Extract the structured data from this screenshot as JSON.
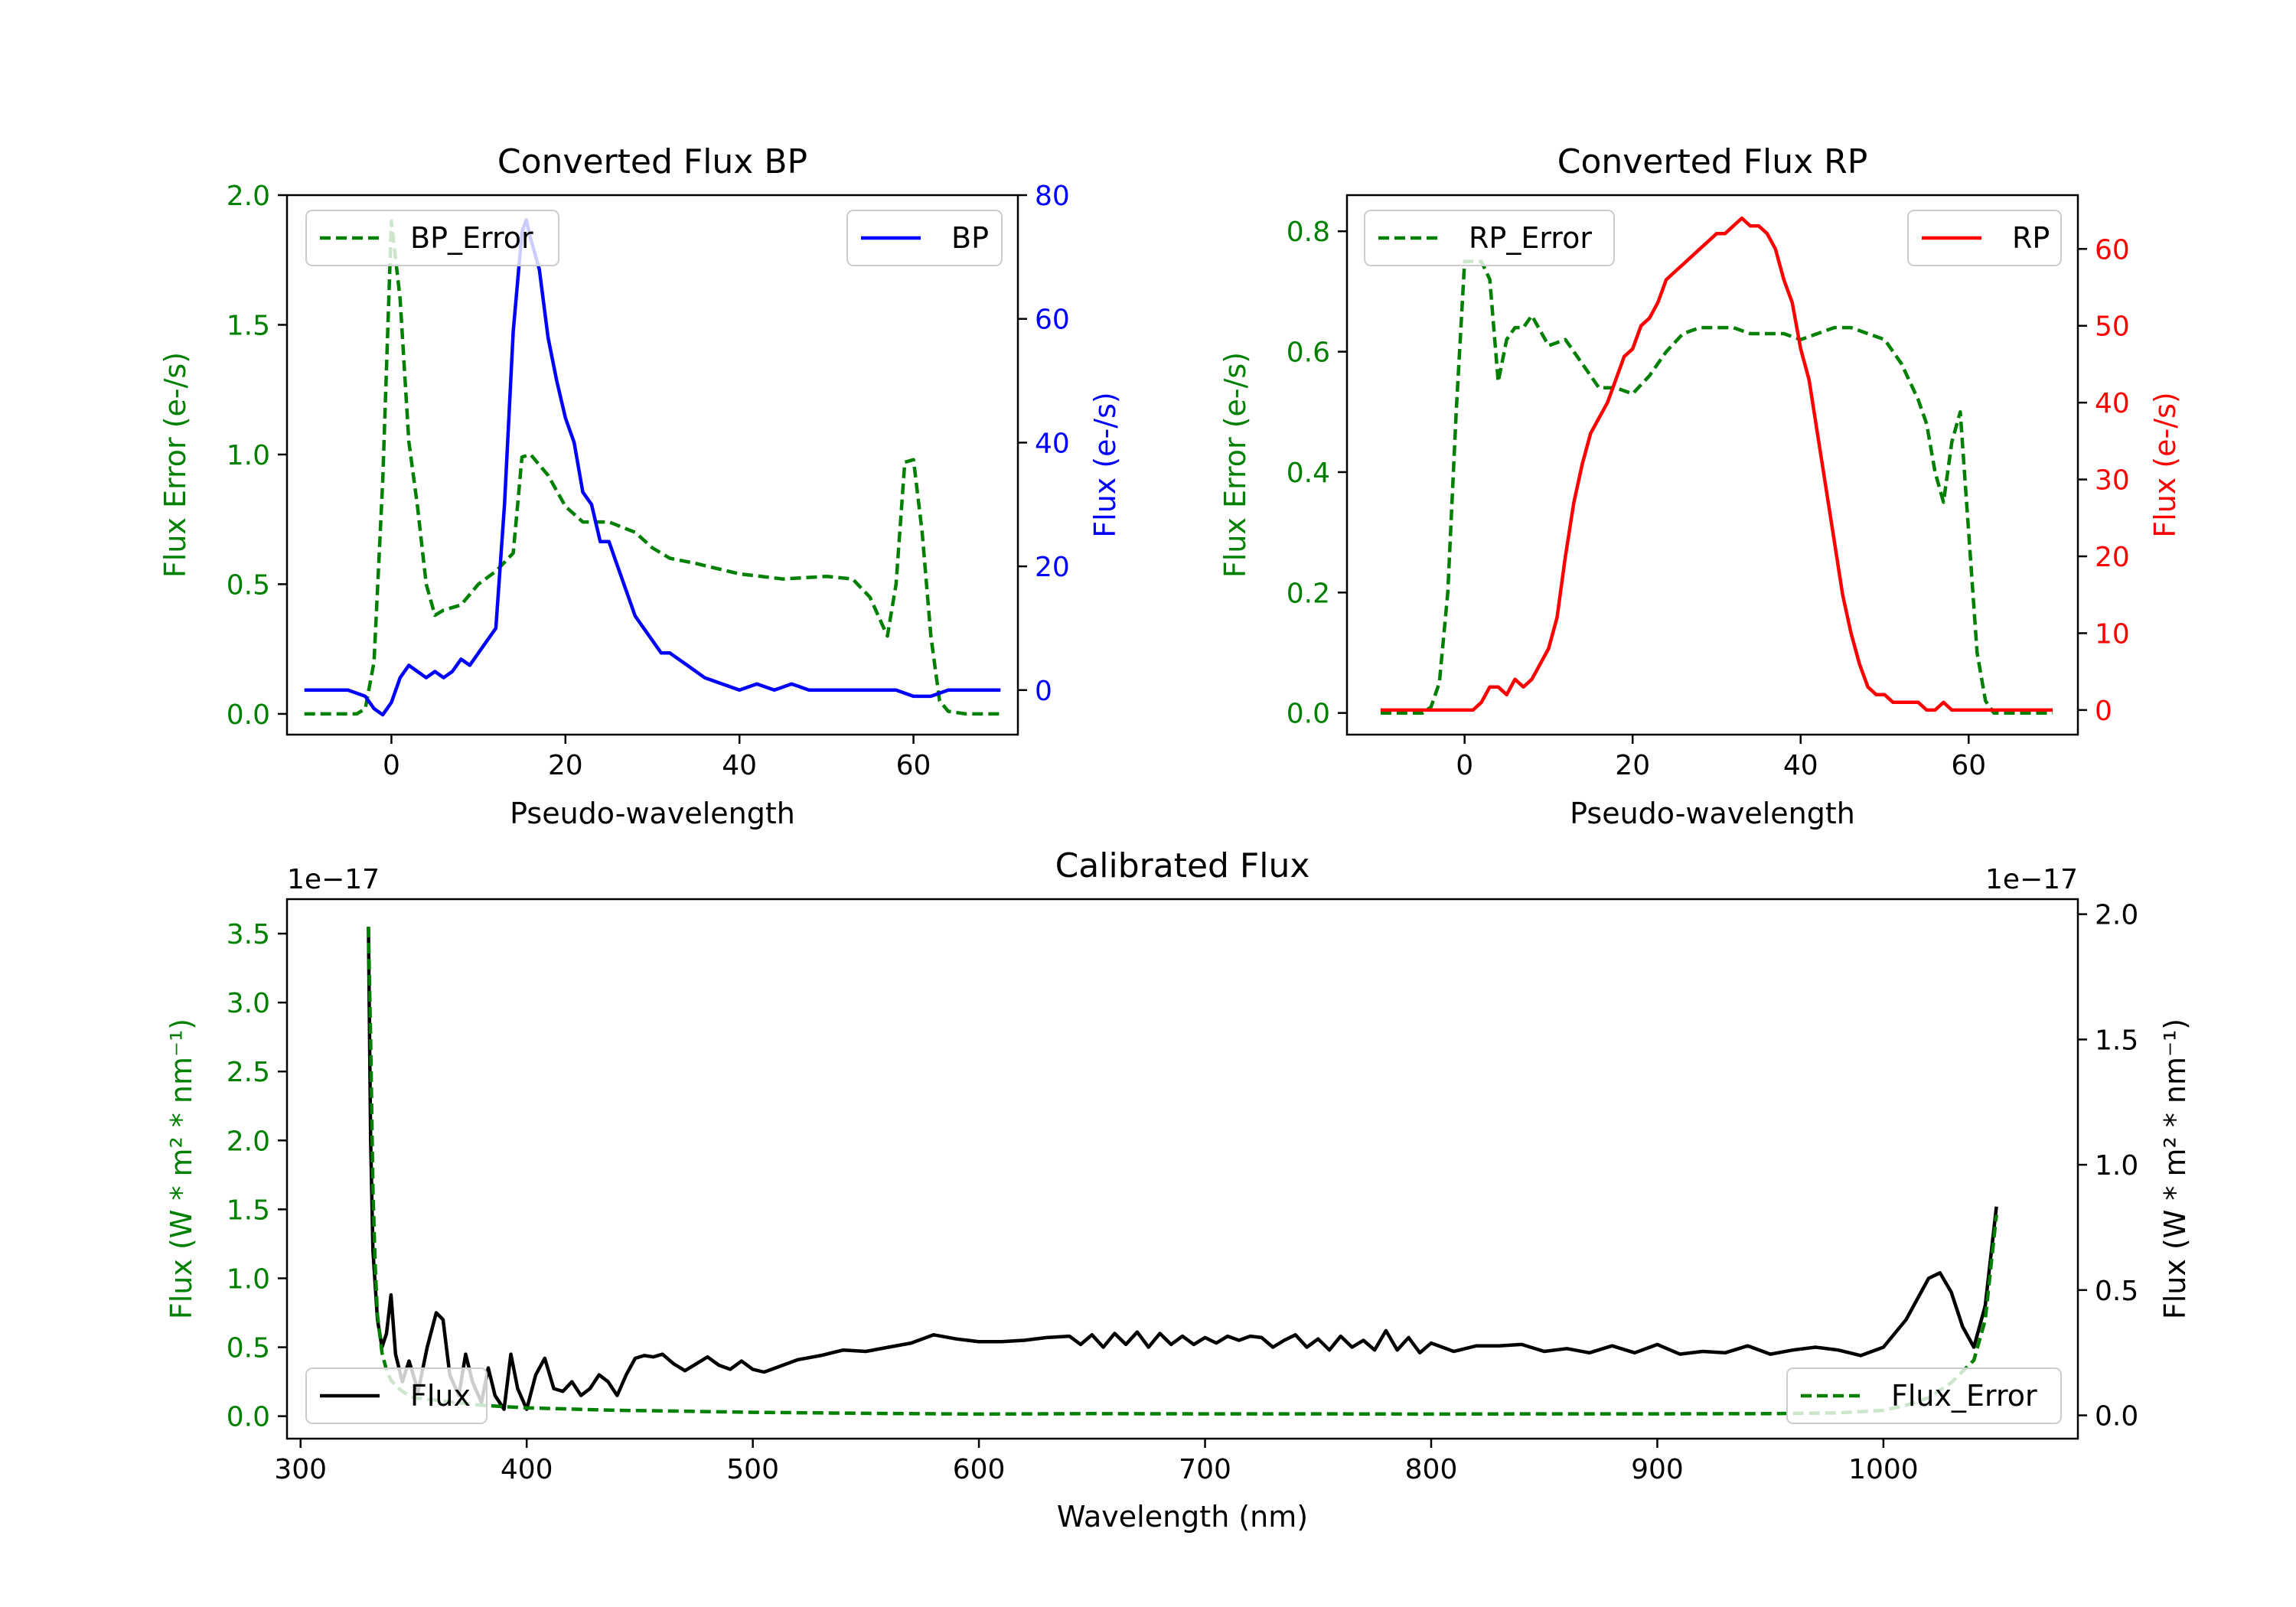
{
  "colors": {
    "bp": "#0000ff",
    "rp": "#ff0000",
    "error": "#008000",
    "flux": "#000000"
  },
  "chart_data": [
    {
      "type": "line",
      "title": "Converted Flux BP",
      "xlabel": "Pseudo-wavelength",
      "ylabel_left": "Flux Error (e-/s)",
      "ylabel_right": "Flux (e-/s)",
      "xlim": [
        -12,
        72
      ],
      "ylim_left": [
        -0.08,
        2.0
      ],
      "ylim_right": [
        -7.2,
        80
      ],
      "x_ticks": [
        "0",
        "20",
        "40",
        "60"
      ],
      "y_ticks_left": [
        "0.0",
        "0.5",
        "1.0",
        "1.5",
        "2.0"
      ],
      "y_ticks_right": [
        "0",
        "20",
        "40",
        "60",
        "80"
      ],
      "legend_left": "BP_Error",
      "legend_right": "BP",
      "series": [
        {
          "name": "BP_Error",
          "axis": "left",
          "style": "dashed",
          "color": "#008000",
          "x": [
            -10,
            -4,
            -3,
            -2,
            -1,
            0,
            1,
            2,
            3,
            4,
            5,
            6,
            8,
            10,
            12,
            14,
            15,
            16,
            18,
            20,
            22,
            25,
            28,
            30,
            32,
            35,
            40,
            45,
            50,
            53,
            55,
            57,
            58,
            59,
            60,
            61,
            62,
            63,
            64,
            66,
            68,
            70
          ],
          "y": [
            0,
            0,
            0.02,
            0.2,
            0.9,
            1.9,
            1.6,
            1.05,
            0.8,
            0.5,
            0.38,
            0.4,
            0.42,
            0.5,
            0.55,
            0.62,
            0.99,
            1.0,
            0.92,
            0.8,
            0.74,
            0.74,
            0.7,
            0.64,
            0.6,
            0.58,
            0.54,
            0.52,
            0.53,
            0.52,
            0.45,
            0.3,
            0.5,
            0.97,
            0.98,
            0.7,
            0.3,
            0.05,
            0.01,
            0,
            0,
            0
          ]
        },
        {
          "name": "BP",
          "axis": "right",
          "style": "solid",
          "color": "#0000ff",
          "x": [
            -10,
            -5,
            -3,
            -2,
            -1,
            0,
            1,
            2,
            3,
            4,
            5,
            6,
            7,
            8,
            9,
            10,
            11,
            12,
            13,
            14,
            15,
            15.5,
            16,
            17,
            18,
            19,
            20,
            21,
            22,
            23,
            24,
            25,
            26,
            27,
            28,
            29,
            30,
            31,
            32,
            34,
            36,
            38,
            40,
            42,
            44,
            46,
            48,
            50,
            52,
            54,
            56,
            58,
            60,
            62,
            64,
            66,
            68,
            70
          ],
          "y": [
            0,
            0,
            -1,
            -3,
            -4,
            -2,
            2,
            4,
            3,
            2,
            3,
            2,
            3,
            5,
            4,
            6,
            8,
            10,
            30,
            58,
            74,
            76,
            73,
            68,
            57,
            50,
            44,
            40,
            32,
            30,
            24,
            24,
            20,
            16,
            12,
            10,
            8,
            6,
            6,
            4,
            2,
            1,
            0,
            1,
            0,
            1,
            0,
            0,
            0,
            0,
            0,
            0,
            -1,
            -1,
            0,
            0,
            0,
            0
          ]
        }
      ]
    },
    {
      "type": "line",
      "title": "Converted Flux RP",
      "xlabel": "Pseudo-wavelength",
      "ylabel_left": "Flux Error (e-/s)",
      "ylabel_right": "Flux (e-/s)",
      "xlim": [
        -14,
        73
      ],
      "ylim_left": [
        -0.036,
        0.86
      ],
      "ylim_right": [
        -3.2,
        67
      ],
      "x_ticks": [
        "0",
        "20",
        "40",
        "60"
      ],
      "y_ticks_left": [
        "0.0",
        "0.2",
        "0.4",
        "0.6",
        "0.8"
      ],
      "y_ticks_right": [
        "0",
        "10",
        "20",
        "30",
        "40",
        "50",
        "60"
      ],
      "legend_left": "RP_Error",
      "legend_right": "RP",
      "series": [
        {
          "name": "RP_Error",
          "axis": "left",
          "style": "dashed",
          "color": "#008000",
          "x": [
            -10,
            -5,
            -4,
            -3,
            -2,
            -1,
            0,
            1,
            2,
            3,
            4,
            5,
            6,
            7,
            8,
            10,
            12,
            14,
            16,
            18,
            20,
            22,
            24,
            26,
            28,
            30,
            32,
            34,
            36,
            38,
            40,
            42,
            44,
            46,
            48,
            50,
            52,
            54,
            55,
            56,
            57,
            58,
            59,
            60,
            61,
            62,
            63,
            64,
            66,
            68,
            70
          ],
          "y": [
            0,
            0,
            0.01,
            0.05,
            0.2,
            0.5,
            0.75,
            0.75,
            0.75,
            0.72,
            0.55,
            0.62,
            0.64,
            0.64,
            0.66,
            0.61,
            0.62,
            0.58,
            0.54,
            0.54,
            0.53,
            0.56,
            0.6,
            0.63,
            0.64,
            0.64,
            0.64,
            0.63,
            0.63,
            0.63,
            0.62,
            0.63,
            0.64,
            0.64,
            0.63,
            0.62,
            0.58,
            0.52,
            0.48,
            0.4,
            0.35,
            0.45,
            0.5,
            0.3,
            0.1,
            0.02,
            0,
            0,
            0,
            0,
            0
          ]
        },
        {
          "name": "RP",
          "axis": "right",
          "style": "solid",
          "color": "#ff0000",
          "x": [
            -10,
            -5,
            -2,
            0,
            1,
            2,
            3,
            4,
            5,
            6,
            7,
            8,
            9,
            10,
            11,
            12,
            13,
            14,
            15,
            16,
            17,
            18,
            19,
            20,
            21,
            22,
            23,
            24,
            25,
            26,
            27,
            28,
            29,
            30,
            31,
            32,
            33,
            34,
            35,
            36,
            37,
            38,
            39,
            40,
            41,
            42,
            43,
            44,
            45,
            46,
            47,
            48,
            49,
            50,
            51,
            52,
            53,
            54,
            55,
            56,
            57,
            58,
            59,
            60,
            62,
            64,
            66,
            68,
            70
          ],
          "y": [
            0,
            0,
            0,
            0,
            0,
            1,
            3,
            3,
            2,
            4,
            3,
            4,
            6,
            8,
            12,
            20,
            27,
            32,
            36,
            38,
            40,
            43,
            46,
            47,
            50,
            51,
            53,
            56,
            57,
            58,
            59,
            60,
            61,
            62,
            62,
            63,
            64,
            63,
            63,
            62,
            60,
            56,
            53,
            47,
            43,
            36,
            29,
            22,
            15,
            10,
            6,
            3,
            2,
            2,
            1,
            1,
            1,
            1,
            0,
            0,
            1,
            0,
            0,
            0,
            0,
            0,
            0,
            0,
            0
          ]
        }
      ]
    },
    {
      "type": "line",
      "title": "Calibrated Flux",
      "xlabel": "Wavelength (nm)",
      "ylabel_left": "Flux (W * m² * nm⁻¹)",
      "ylabel_right": "Flux (W * m² * nm⁻¹)",
      "offset_left": "1e−17",
      "offset_right": "1e−17",
      "xlim": [
        294,
        1086
      ],
      "ylim_left": [
        -0.163,
        3.75
      ],
      "ylim_right": [
        -0.093,
        2.06
      ],
      "x_ticks": [
        "300",
        "400",
        "500",
        "600",
        "700",
        "800",
        "900",
        "1000"
      ],
      "y_ticks_left": [
        "0.0",
        "0.5",
        "1.0",
        "1.5",
        "2.0",
        "2.5",
        "3.0",
        "3.5"
      ],
      "y_ticks_right": [
        "0.0",
        "0.5",
        "1.0",
        "1.5",
        "2.0"
      ],
      "legend_left": "Flux",
      "legend_right": "Flux_Error",
      "series": [
        {
          "name": "Flux",
          "axis": "left",
          "style": "solid",
          "color": "#000000",
          "x": [
            330,
            331,
            332,
            334,
            336,
            338,
            340,
            342,
            345,
            348,
            352,
            356,
            360,
            363,
            366,
            370,
            373,
            376,
            380,
            383,
            386,
            390,
            393,
            396,
            400,
            404,
            408,
            412,
            416,
            420,
            424,
            428,
            432,
            436,
            440,
            444,
            448,
            452,
            456,
            460,
            465,
            470,
            475,
            480,
            485,
            490,
            495,
            500,
            505,
            510,
            520,
            530,
            540,
            550,
            560,
            570,
            580,
            590,
            600,
            610,
            620,
            630,
            640,
            645,
            650,
            655,
            660,
            665,
            670,
            675,
            680,
            685,
            690,
            695,
            700,
            705,
            710,
            715,
            720,
            725,
            730,
            735,
            740,
            745,
            750,
            755,
            760,
            765,
            770,
            775,
            780,
            785,
            790,
            795,
            800,
            810,
            820,
            830,
            840,
            850,
            860,
            870,
            880,
            890,
            900,
            910,
            920,
            930,
            940,
            950,
            960,
            970,
            980,
            990,
            1000,
            1010,
            1020,
            1025,
            1030,
            1035,
            1040,
            1045,
            1050
          ],
          "y": [
            3.55,
            2.0,
            1.2,
            0.7,
            0.5,
            0.6,
            0.88,
            0.45,
            0.25,
            0.4,
            0.18,
            0.5,
            0.75,
            0.7,
            0.3,
            0.15,
            0.45,
            0.25,
            0.1,
            0.35,
            0.15,
            0.05,
            0.45,
            0.2,
            0.05,
            0.3,
            0.42,
            0.2,
            0.18,
            0.25,
            0.15,
            0.2,
            0.3,
            0.25,
            0.15,
            0.3,
            0.42,
            0.44,
            0.43,
            0.45,
            0.38,
            0.33,
            0.38,
            0.43,
            0.37,
            0.34,
            0.4,
            0.34,
            0.32,
            0.35,
            0.41,
            0.44,
            0.48,
            0.47,
            0.5,
            0.53,
            0.59,
            0.56,
            0.54,
            0.54,
            0.55,
            0.57,
            0.58,
            0.52,
            0.59,
            0.5,
            0.6,
            0.52,
            0.61,
            0.5,
            0.6,
            0.52,
            0.58,
            0.52,
            0.57,
            0.53,
            0.58,
            0.55,
            0.58,
            0.57,
            0.5,
            0.55,
            0.59,
            0.5,
            0.56,
            0.48,
            0.58,
            0.5,
            0.55,
            0.48,
            0.62,
            0.48,
            0.57,
            0.46,
            0.53,
            0.47,
            0.51,
            0.51,
            0.52,
            0.47,
            0.49,
            0.46,
            0.51,
            0.46,
            0.52,
            0.45,
            0.47,
            0.46,
            0.51,
            0.45,
            0.48,
            0.5,
            0.48,
            0.44,
            0.5,
            0.7,
            1.0,
            1.04,
            0.9,
            0.65,
            0.5,
            0.8,
            1.52
          ]
        },
        {
          "name": "Flux_Error",
          "axis": "right",
          "style": "dashed",
          "color": "#008000",
          "x": [
            330,
            331,
            332,
            333,
            334,
            336,
            338,
            340,
            343,
            346,
            350,
            360,
            370,
            380,
            390,
            400,
            420,
            440,
            460,
            500,
            550,
            600,
            650,
            700,
            750,
            800,
            850,
            900,
            950,
            980,
            1000,
            1010,
            1020,
            1030,
            1040,
            1045,
            1050
          ],
          "y": [
            1.95,
            1.5,
            0.9,
            0.6,
            0.4,
            0.25,
            0.18,
            0.14,
            0.11,
            0.09,
            0.07,
            0.06,
            0.05,
            0.04,
            0.035,
            0.03,
            0.025,
            0.02,
            0.018,
            0.012,
            0.008,
            0.005,
            0.007,
            0.006,
            0.006,
            0.005,
            0.006,
            0.006,
            0.007,
            0.01,
            0.02,
            0.04,
            0.07,
            0.13,
            0.22,
            0.38,
            0.8
          ]
        }
      ]
    }
  ]
}
